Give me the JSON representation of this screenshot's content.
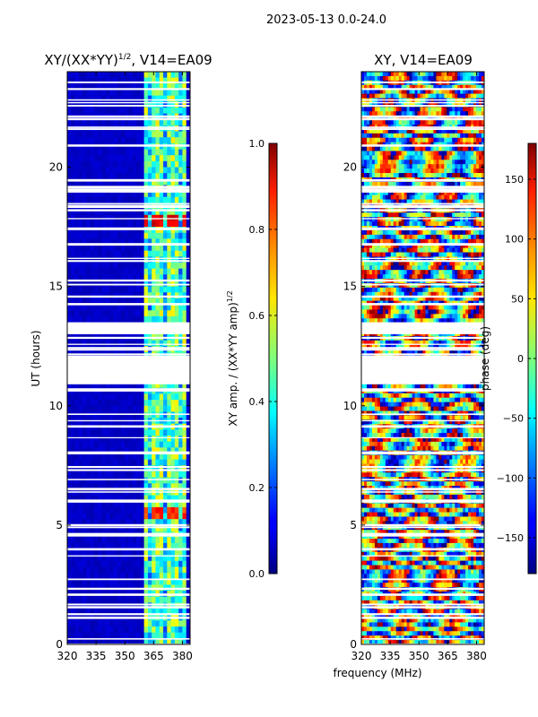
{
  "suptitle": "2023-05-13 0.0-24.0",
  "xlabel_shared": "frequency (MHz)",
  "chart_data": [
    {
      "type": "heatmap",
      "title_base": "XY/(XX*YY)",
      "title_exp": "1/2",
      "title_suffix": ", V14=EA09",
      "xlabel": "frequency (MHz)",
      "ylabel": "UT (hours)",
      "xlim": [
        320,
        384
      ],
      "ylim": [
        0,
        24
      ],
      "xticks": [
        320,
        335,
        350,
        365,
        380
      ],
      "yticks": [
        0,
        5,
        10,
        15,
        20
      ],
      "colormap": "jet",
      "colorbar": {
        "label_base": "XY amp. / (XX*YY amp)",
        "label_exp": "1/2",
        "min": 0.0,
        "max": 1.0,
        "ticks": [
          "0.0",
          "0.2",
          "0.4",
          "0.6",
          "0.8",
          "1.0"
        ]
      },
      "signal_band_mhz": [
        361,
        382
      ],
      "background_value": 0.05,
      "band_value_range": [
        0.3,
        0.65
      ],
      "hot_spots": [
        {
          "ut_range": [
            17.4,
            17.9
          ],
          "value": 0.85
        },
        {
          "ut_range": [
            5.2,
            5.7
          ],
          "value": 0.78
        }
      ],
      "gaps_ut": [
        [
          10.9,
          12.1
        ],
        [
          13.0,
          13.5
        ]
      ]
    },
    {
      "type": "heatmap",
      "title": "XY, V14=EA09",
      "xlabel": "frequency (MHz)",
      "ylabel": "",
      "xlim": [
        320,
        384
      ],
      "ylim": [
        0,
        24
      ],
      "xticks": [
        320,
        335,
        350,
        365,
        380
      ],
      "yticks": [
        0,
        5,
        10,
        15,
        20
      ],
      "colormap": "jet",
      "colorbar": {
        "label": "phase (deg)",
        "min": -180,
        "max": 180,
        "ticks": [
          "−150",
          "−100",
          "−50",
          "0",
          "50",
          "100",
          "150"
        ]
      },
      "gaps_ut": [
        [
          10.9,
          12.1
        ],
        [
          13.0,
          13.5
        ]
      ]
    }
  ]
}
